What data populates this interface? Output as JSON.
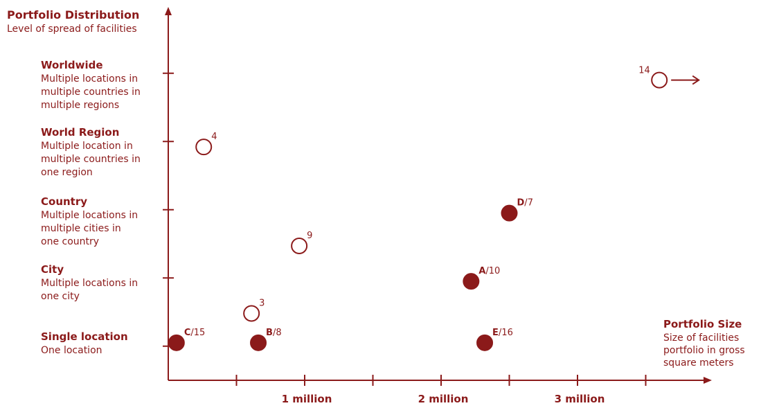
{
  "chart_data": {
    "type": "scatter",
    "y_axis": {
      "title": "Portfolio Distribution",
      "subtitle": "Level of spread of facilities",
      "levels": [
        {
          "name": "Single location",
          "lines": [
            "One location"
          ]
        },
        {
          "name": "City",
          "lines": [
            "Multiple locations in",
            "one city"
          ]
        },
        {
          "name": "Country",
          "lines": [
            "Multiple locations in",
            "multiple cities in",
            "one country"
          ]
        },
        {
          "name": "World Region",
          "lines": [
            "Multiple location in",
            "multiple countries in",
            "one region"
          ]
        },
        {
          "name": "Worldwide",
          "lines": [
            "Multiple locations in",
            "multiple countries in",
            "multiple regions"
          ]
        }
      ]
    },
    "x_axis": {
      "title": "Portfolio Size",
      "subtitle_lines": [
        "Size of facilities",
        "portfolio in gross",
        "square meters"
      ],
      "tick_labels": [
        {
          "value": 1,
          "label": "1 million"
        },
        {
          "value": 2,
          "label": "2 million"
        },
        {
          "value": 3,
          "label": "3 million"
        }
      ],
      "minor_ticks": [
        0.5,
        1,
        1.5,
        2,
        2.5,
        3,
        3.5
      ],
      "range": [
        0,
        3.9
      ]
    },
    "y_range": [
      0,
      5
    ],
    "y_ticks": [
      0.5,
      1.5,
      2.5,
      3.5,
      4.5
    ],
    "points": [
      {
        "letter": "C",
        "number": "15",
        "x": 0.06,
        "y": 0.55,
        "filled": true
      },
      {
        "letter": "B",
        "number": "8",
        "x": 0.66,
        "y": 0.55,
        "filled": true
      },
      {
        "letter": "E",
        "number": "16",
        "x": 2.32,
        "y": 0.55,
        "filled": true
      },
      {
        "letter": "A",
        "number": "10",
        "x": 2.22,
        "y": 1.45,
        "filled": true
      },
      {
        "letter": "D",
        "number": "7",
        "x": 2.5,
        "y": 2.45,
        "filled": true
      },
      {
        "letter": "",
        "number": "3",
        "x": 0.61,
        "y": 0.98,
        "filled": false
      },
      {
        "letter": "",
        "number": "9",
        "x": 0.96,
        "y": 1.97,
        "filled": false
      },
      {
        "letter": "",
        "number": "4",
        "x": 0.26,
        "y": 3.42,
        "filled": false
      },
      {
        "letter": "",
        "number": "14",
        "x": 3.6,
        "y": 4.4,
        "filled": false,
        "arrow": "right"
      }
    ],
    "colors": {
      "accent": "#8b1a1a"
    }
  }
}
